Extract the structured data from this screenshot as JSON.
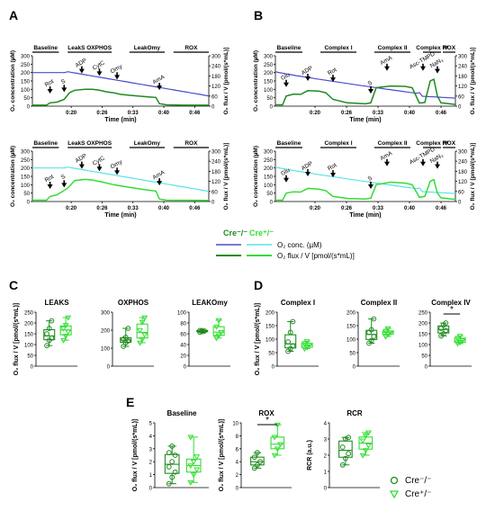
{
  "colors": {
    "cre_ko_o2": "#4b4bcf",
    "cre_het_o2": "#59e3e3",
    "cre_ko_flux": "#1f8a1f",
    "cre_het_flux": "#33dd33",
    "box_ko": "#1f8a1f",
    "box_het": "#33dd33"
  },
  "trace_axes": {
    "y_left_label": "O₂ concentration (µM)",
    "y_right_label": "O₂ flux / V [pmol/(s*mL)]",
    "x_label": "Time (min)",
    "left_ticks": [
      "0",
      "50",
      "100",
      "150",
      "200",
      "250",
      "300"
    ],
    "right_ticks": [
      "0",
      "60",
      "120",
      "180",
      "240",
      "300"
    ],
    "x_ticks": [
      "0:20",
      "0:26",
      "0:33",
      "0:40",
      "0:46"
    ],
    "x_ticks_b": [
      "0:20",
      "0:26",
      "0:33",
      "0:40",
      "0:46"
    ]
  },
  "panel_A": {
    "label": "A",
    "segments": [
      "Baseline",
      "LeakS OXPHOS",
      "LeakOmy",
      "ROX"
    ],
    "segments_bot": [
      "Baseline",
      "LeakS OXPHOS",
      "LeakOmy",
      "ROX"
    ],
    "arrows_top": [
      "Rot",
      "S",
      "ADP",
      "CytC",
      "Omy",
      "AmA"
    ],
    "arrows_bot": [
      "Rot",
      "S",
      "ADP",
      "CytC",
      "Omy",
      "AmA"
    ]
  },
  "panel_B": {
    "label": "B",
    "segments": [
      "Baseline",
      "Complex I",
      "Complex II",
      "Complex IV",
      "ROX"
    ],
    "segments_bot": [
      "Baseline",
      "Complex I",
      "Complex II",
      "Complex IV",
      "ROX"
    ],
    "arrows_top": [
      "Glu",
      "ADP",
      "Rot",
      "S",
      "AmA",
      "Asc-TMPD",
      "NaN₃"
    ],
    "arrows_bot": [
      "Glu",
      "ADP",
      "Rot",
      "S",
      "AmA",
      "Asc-TMPD",
      "NaN₃"
    ]
  },
  "legend": {
    "cre_ko": "Cre⁻/⁻",
    "cre_het": "Cre⁺/⁻",
    "o2_conc": "O₂ conc. (µM)",
    "o2_flux": "O₂ flux / V [pmol/(s*mL)]",
    "cre_ko_e": "Cre⁻/⁻",
    "cre_het_e": "Cre⁺/⁻"
  },
  "panel_C": {
    "label": "C",
    "ylabel": "O₂ flux / V [pmol/(s*mL)]",
    "charts": [
      {
        "title": "LEAKS",
        "ticks": [
          "0",
          "50",
          "100",
          "150",
          "200",
          "250"
        ]
      },
      {
        "title": "OXPHOS",
        "ticks": [
          "0",
          "100",
          "200",
          "300"
        ]
      },
      {
        "title": "LEAKOmy",
        "ticks": [
          "0",
          "20",
          "40",
          "60",
          "80",
          "100"
        ]
      }
    ]
  },
  "panel_D": {
    "label": "D",
    "ylabel": "O₂ flux / V [pmol/(s*mL)]",
    "charts": [
      {
        "title": "Complex I",
        "ticks": [
          "0",
          "50",
          "100",
          "150",
          "200"
        ]
      },
      {
        "title": "Complex II",
        "ticks": [
          "0",
          "50",
          "100",
          "150",
          "200"
        ]
      },
      {
        "title": "Complex IV",
        "ticks": [
          "0",
          "50",
          "100",
          "150",
          "200",
          "250"
        ],
        "sig": "*"
      }
    ]
  },
  "panel_E": {
    "label": "E",
    "charts": [
      {
        "title": "Baseline",
        "ylabel": "O₂ flux / V [pmol/(s*mL)]",
        "ticks": [
          "0",
          "1",
          "2",
          "3",
          "4",
          "5"
        ]
      },
      {
        "title": "ROX",
        "ylabel": "O₂ flux / V [pmol/(s*mL)]",
        "ticks": [
          "0",
          "2",
          "4",
          "6",
          "8",
          "10"
        ],
        "sig": "*"
      },
      {
        "title": "RCR",
        "ylabel": "RCR (a.u.)",
        "ticks": [
          "0",
          "1",
          "2",
          "3",
          "4"
        ]
      }
    ]
  },
  "chart_data": [
    {
      "type": "box",
      "title": "LEAKS",
      "series": [
        {
          "values": [
            95,
            120,
            130,
            150,
            175,
            210
          ]
        },
        {
          "values": [
            120,
            140,
            160,
            175,
            190,
            225
          ]
        }
      ],
      "ylim": [
        0,
        250
      ]
    },
    {
      "type": "box",
      "title": "OXPHOS",
      "series": [
        {
          "values": [
            110,
            130,
            140,
            150,
            160,
            210
          ]
        },
        {
          "values": [
            130,
            150,
            175,
            200,
            245,
            270
          ]
        }
      ],
      "ylim": [
        0,
        300
      ]
    },
    {
      "type": "box",
      "title": "LEAKOmy",
      "series": [
        {
          "values": [
            63,
            64,
            65,
            66,
            66
          ]
        },
        {
          "values": [
            52,
            57,
            63,
            73,
            85
          ]
        }
      ],
      "ylim": [
        0,
        100
      ]
    },
    {
      "type": "box",
      "title": "Complex I",
      "series": [
        {
          "values": [
            55,
            65,
            75,
            90,
            125,
            165
          ]
        },
        {
          "values": [
            65,
            70,
            78,
            85,
            92
          ]
        }
      ],
      "ylim": [
        0,
        200
      ]
    },
    {
      "type": "box",
      "title": "Complex II",
      "series": [
        {
          "values": [
            85,
            95,
            110,
            125,
            135,
            175
          ]
        },
        {
          "values": [
            110,
            118,
            125,
            130,
            140
          ]
        }
      ],
      "ylim": [
        0,
        200
      ]
    },
    {
      "type": "box",
      "title": "Complex IV",
      "series": [
        {
          "values": [
            140,
            150,
            165,
            175,
            190,
            200
          ]
        },
        {
          "values": [
            105,
            110,
            120,
            130,
            140
          ]
        }
      ],
      "ylim": [
        0,
        250
      ]
    },
    {
      "type": "box",
      "title": "Baseline",
      "series": [
        {
          "values": [
            0.3,
            0.8,
            1.2,
            1.6,
            2.0,
            2.5,
            2.7,
            3.2
          ]
        },
        {
          "values": [
            0.4,
            1.0,
            1.4,
            1.7,
            2.0,
            2.4,
            3.9
          ]
        }
      ],
      "ylim": [
        0,
        5
      ]
    },
    {
      "type": "box",
      "title": "ROX",
      "series": [
        {
          "values": [
            3.0,
            3.5,
            4.0,
            4.7,
            5.4
          ]
        },
        {
          "values": [
            5.0,
            6.0,
            6.7,
            7.8,
            9.7
          ]
        }
      ],
      "ylim": [
        0,
        10
      ]
    },
    {
      "type": "box",
      "title": "RCR",
      "series": [
        {
          "values": [
            1.4,
            1.8,
            2.1,
            2.5,
            3.0,
            3.1
          ]
        },
        {
          "values": [
            2.0,
            2.3,
            2.6,
            2.9,
            3.2,
            3.4
          ]
        }
      ],
      "ylim": [
        0,
        4
      ]
    }
  ]
}
